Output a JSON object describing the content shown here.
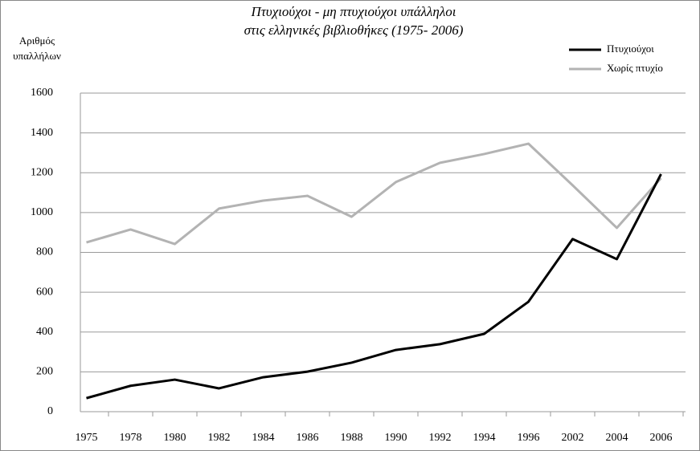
{
  "chart_data": {
    "type": "line",
    "title": [
      "Πτυχιούχοι - μη πτυχιούχοι υπάλληλοι",
      "στις ελληνικές βιβλιοθήκες (1975- 2006)"
    ],
    "y_label": [
      "Αριθμός",
      "υπαλλήλων"
    ],
    "categories": [
      "1975",
      "1978",
      "1980",
      "1982",
      "1984",
      "1986",
      "1988",
      "1990",
      "1992",
      "1994",
      "1996",
      "2002",
      "2004",
      "2006"
    ],
    "series": [
      {
        "name": "Πτυχιούχοι",
        "color": "#000000",
        "values": [
          68,
          130,
          161,
          117,
          173,
          201,
          246,
          310,
          339,
          391,
          552,
          867,
          766,
          1193
        ]
      },
      {
        "name": "Χωρίς πτυχίο",
        "color": "#b3b3b3",
        "values": [
          850,
          915,
          842,
          1020,
          1060,
          1084,
          979,
          1153,
          1250,
          1294,
          1346,
          1137,
          923,
          1173
        ]
      }
    ],
    "ylim": [
      0,
      1600
    ],
    "yticks": [
      0,
      200,
      400,
      600,
      800,
      1000,
      1200,
      1400,
      1600
    ],
    "grid": true,
    "legend": "top-right"
  }
}
